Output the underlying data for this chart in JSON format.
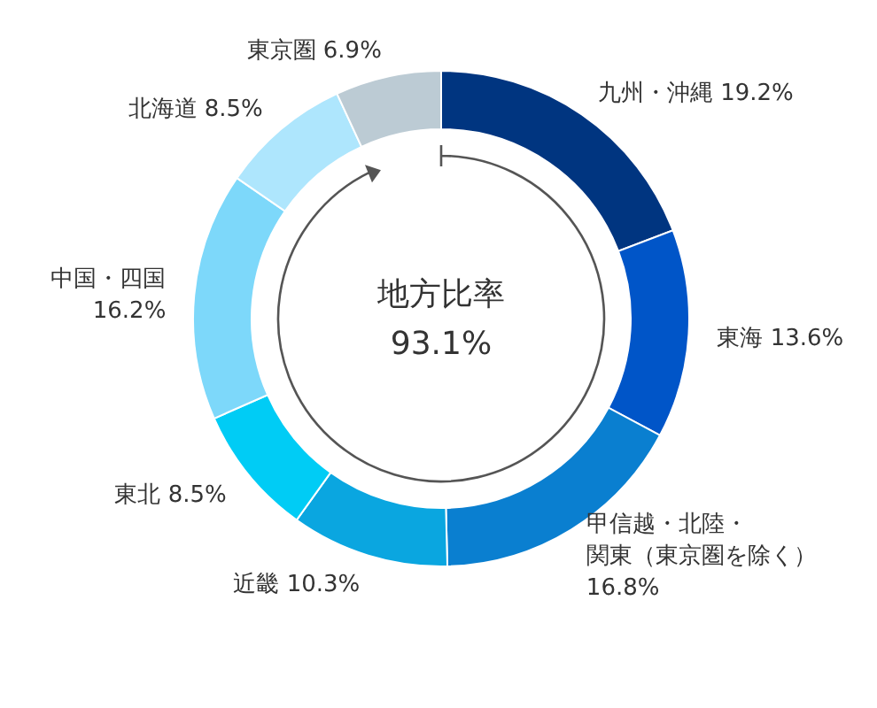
{
  "chart_data": {
    "type": "donut",
    "categories": [
      "九州・沖縄",
      "東海",
      "甲信越・北陸・関東（東京圏を除く）",
      "近畿",
      "東北",
      "中国・四国",
      "北海道",
      "東京圏"
    ],
    "values": [
      19.2,
      13.6,
      16.8,
      10.3,
      8.5,
      16.2,
      8.5,
      6.9
    ],
    "value_labels": [
      "19.2%",
      "13.6%",
      "16.8%",
      "10.3%",
      "8.5%",
      "16.2%",
      "8.5%",
      "6.9%"
    ],
    "colors": [
      "#003580",
      "#0055c8",
      "#0a7fd0",
      "#0aa6e0",
      "#00ccf5",
      "#7dd8fa",
      "#aee6fd",
      "#bccbd4"
    ],
    "annotations": [
      "地方比率",
      "93.1%"
    ],
    "legend": false
  }
}
